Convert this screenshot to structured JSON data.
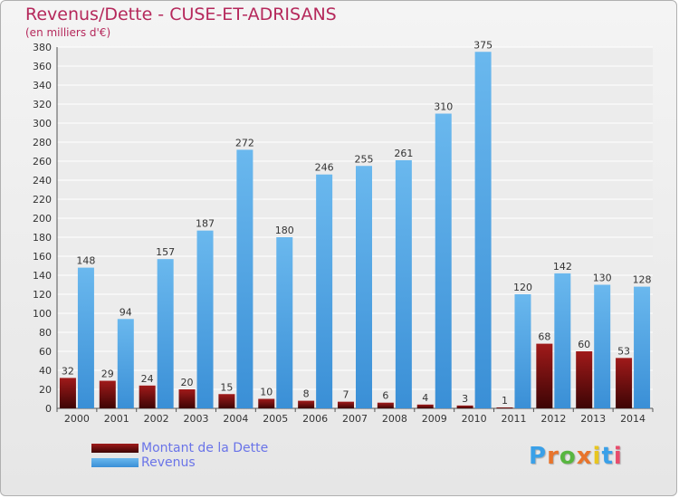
{
  "header": {
    "title": "Revenus/Dette - CUSE-ET-ADRISANS",
    "subtitle": "(en milliers d'€)"
  },
  "legend": {
    "debt_label": "Montant de la Dette",
    "revenue_label": "Revenus"
  },
  "brand": {
    "letters": [
      "P",
      "r",
      "o",
      "x",
      "i",
      "t",
      "i"
    ],
    "colors": [
      "#3aa0e8",
      "#e8742c",
      "#58b640",
      "#e8742c",
      "#e8c620",
      "#3aa0e8",
      "#e84c6c"
    ]
  },
  "colors": {
    "debt_top": "#a01a1a",
    "debt_bottom": "#3d0505",
    "revenue_top": "#6ab8ee",
    "revenue_bottom": "#3a8fd6",
    "title": "#b5285b",
    "legend_text": "#6a74e8"
  },
  "chart_data": {
    "type": "bar",
    "title": "Revenus/Dette - CUSE-ET-ADRISANS",
    "subtitle": "(en milliers d'€)",
    "categories": [
      "2000",
      "2001",
      "2002",
      "2003",
      "2004",
      "2005",
      "2006",
      "2007",
      "2008",
      "2009",
      "2010",
      "2011",
      "2012",
      "2013",
      "2014"
    ],
    "series": [
      {
        "name": "Montant de la Dette",
        "values": [
          32,
          29,
          24,
          20,
          15,
          10,
          8,
          7,
          6,
          4,
          3,
          1,
          68,
          60,
          53
        ]
      },
      {
        "name": "Revenus",
        "values": [
          148,
          94,
          157,
          187,
          272,
          180,
          246,
          255,
          261,
          310,
          375,
          120,
          142,
          130,
          128
        ]
      }
    ],
    "ylim": [
      0,
      380
    ],
    "ytick_step": 20,
    "grid": true,
    "legend_position": "bottom-left"
  }
}
